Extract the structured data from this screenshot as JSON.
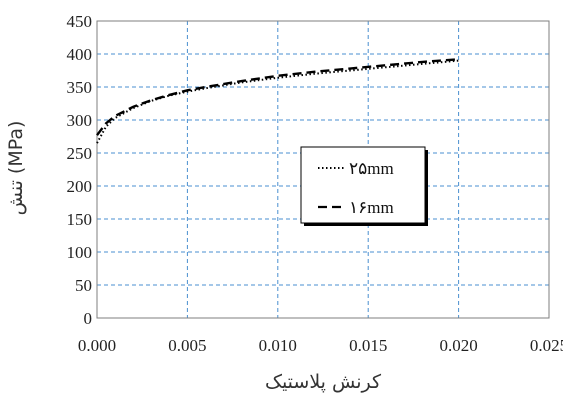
{
  "chart_data": {
    "type": "line",
    "xlabel": "کرنش پلاستیک",
    "ylabel": "تنش (MPa)",
    "xlim": [
      0.0,
      0.025
    ],
    "ylim": [
      0,
      450
    ],
    "x_ticks": [
      "0.000",
      "0.005",
      "0.010",
      "0.015",
      "0.020",
      "0.025"
    ],
    "y_ticks": [
      "0",
      "50",
      "100",
      "150",
      "200",
      "250",
      "300",
      "350",
      "400",
      "450"
    ],
    "grid": true,
    "legend_position": "center-right",
    "series": [
      {
        "name": "۲۵mm",
        "style": "dotted",
        "color": "#000000",
        "x": [
          0.0,
          0.0005,
          0.001,
          0.002,
          0.003,
          0.004,
          0.005,
          0.006,
          0.008,
          0.01,
          0.012,
          0.014,
          0.016,
          0.018,
          0.02
        ],
        "y": [
          265,
          290,
          303,
          318,
          329,
          337,
          343,
          348,
          357,
          364,
          370,
          375,
          380,
          385,
          390
        ]
      },
      {
        "name": "۱۶mm",
        "style": "dashed",
        "color": "#000000",
        "x": [
          0.0,
          0.0005,
          0.001,
          0.002,
          0.003,
          0.004,
          0.005,
          0.006,
          0.008,
          0.01,
          0.012,
          0.014,
          0.016,
          0.018,
          0.02
        ],
        "y": [
          277,
          295,
          306,
          320,
          330,
          338,
          345,
          350,
          359,
          367,
          373,
          378,
          383,
          388,
          392
        ]
      }
    ]
  }
}
